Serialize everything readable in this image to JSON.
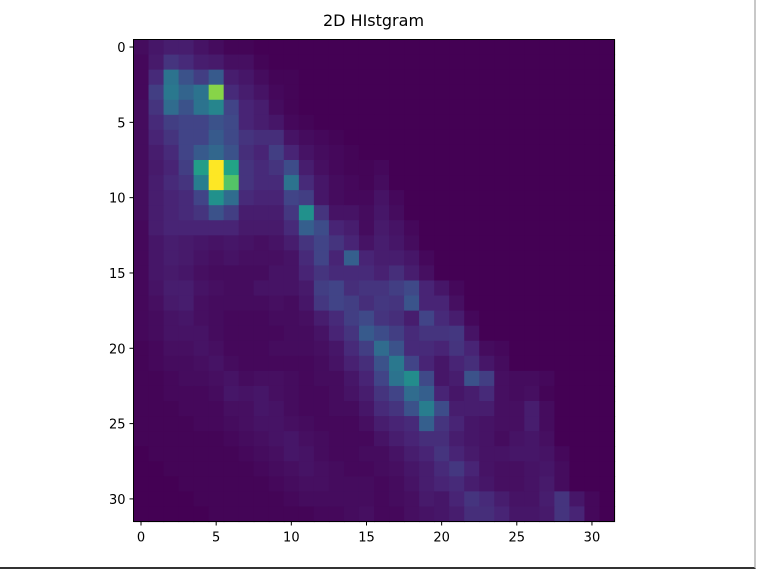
{
  "chart_data": {
    "type": "heatmap",
    "title": "2D HIstgram",
    "xlabel": "",
    "ylabel": "",
    "colormap": "viridis",
    "x_ticks": [
      0,
      5,
      10,
      15,
      20,
      25,
      30
    ],
    "y_ticks": [
      0,
      5,
      10,
      15,
      20,
      25,
      30
    ],
    "xlim": [
      -0.5,
      31.5
    ],
    "ylim": [
      31.5,
      -0.5
    ],
    "value_range": [
      0,
      10
    ],
    "grid": false,
    "values": [
      [
        0.3,
        0.6,
        0.8,
        0.8,
        0.5,
        0.3,
        0.1,
        0.1,
        0,
        0,
        0,
        0,
        0,
        0,
        0,
        0,
        0,
        0,
        0,
        0,
        0,
        0,
        0,
        0,
        0,
        0,
        0,
        0,
        0,
        0,
        0,
        0
      ],
      [
        0.2,
        0.7,
        1.5,
        1.2,
        0.8,
        0.7,
        0.4,
        0.4,
        0.1,
        0,
        0,
        0,
        0,
        0,
        0,
        0,
        0,
        0,
        0,
        0,
        0,
        0,
        0,
        0,
        0,
        0,
        0,
        0,
        0,
        0,
        0,
        0
      ],
      [
        0.2,
        1.2,
        3.8,
        2.5,
        1.8,
        2.8,
        0.8,
        0.6,
        0.3,
        0.1,
        0.1,
        0,
        0,
        0,
        0,
        0,
        0,
        0,
        0,
        0,
        0,
        0,
        0,
        0,
        0,
        0,
        0,
        0,
        0,
        0,
        0,
        0
      ],
      [
        0.2,
        1.8,
        4,
        3.2,
        3.8,
        8.2,
        1.2,
        0.8,
        0.5,
        0.2,
        0.1,
        0,
        0,
        0,
        0,
        0,
        0,
        0,
        0,
        0,
        0,
        0,
        0,
        0,
        0,
        0,
        0,
        0,
        0,
        0,
        0,
        0
      ],
      [
        0.3,
        1.5,
        3.5,
        2.5,
        3.8,
        4.5,
        2,
        1,
        0.8,
        0.3,
        0.1,
        0,
        0,
        0,
        0,
        0,
        0,
        0,
        0,
        0,
        0,
        0,
        0,
        0,
        0,
        0,
        0,
        0,
        0,
        0,
        0,
        0
      ],
      [
        0.3,
        1.2,
        1.8,
        2,
        2,
        2.5,
        2.2,
        1,
        0.8,
        0.6,
        0.2,
        0.1,
        0,
        0,
        0,
        0,
        0,
        0,
        0,
        0,
        0,
        0,
        0,
        0,
        0,
        0,
        0,
        0,
        0,
        0,
        0,
        0
      ],
      [
        0.3,
        1,
        1.5,
        2,
        2,
        2.8,
        2.2,
        1.5,
        1.3,
        1.3,
        0.5,
        0.3,
        0.2,
        0.1,
        0,
        0,
        0,
        0,
        0,
        0,
        0,
        0,
        0,
        0,
        0,
        0,
        0,
        0,
        0,
        0,
        0,
        0
      ],
      [
        0.3,
        0.8,
        1.2,
        2,
        2.8,
        3.3,
        2.5,
        1.3,
        1,
        1.8,
        1,
        0.5,
        0.3,
        0.2,
        0.1,
        0,
        0,
        0,
        0,
        0,
        0,
        0,
        0,
        0,
        0,
        0,
        0,
        0,
        0,
        0,
        0,
        0
      ],
      [
        0.3,
        0.7,
        1,
        1.8,
        5.5,
        10,
        5.8,
        1.5,
        1.2,
        1.5,
        2.3,
        0.8,
        0.4,
        0.2,
        0.1,
        0.1,
        0.2,
        0,
        0,
        0,
        0,
        0,
        0,
        0,
        0,
        0,
        0,
        0,
        0,
        0,
        0,
        0
      ],
      [
        0.3,
        0.8,
        1.2,
        1.5,
        4.2,
        10,
        7.3,
        1.5,
        1.2,
        1.2,
        3.8,
        1.2,
        0.6,
        0.3,
        0.2,
        0.1,
        0.3,
        0,
        0,
        0,
        0,
        0,
        0,
        0,
        0,
        0,
        0,
        0,
        0,
        0,
        0,
        0
      ],
      [
        0.3,
        0.8,
        1,
        1.2,
        2,
        5,
        3.5,
        1.2,
        1,
        1,
        2,
        1.8,
        0.6,
        0.3,
        0.2,
        0.2,
        0.5,
        0.2,
        0,
        0,
        0,
        0,
        0,
        0,
        0,
        0,
        0,
        0,
        0,
        0,
        0,
        0
      ],
      [
        0.3,
        0.8,
        1,
        1.2,
        1.5,
        2.5,
        1.8,
        0.8,
        0.8,
        0.8,
        1.6,
        5,
        1.5,
        0.5,
        0.5,
        0.3,
        0.6,
        0.3,
        0,
        0,
        0,
        0,
        0,
        0,
        0,
        0,
        0,
        0,
        0,
        0,
        0,
        0
      ],
      [
        0.2,
        0.8,
        1,
        1,
        1,
        1,
        1,
        0.7,
        0.7,
        0.7,
        1.2,
        3,
        2.3,
        1,
        0.8,
        0.3,
        0.7,
        0.5,
        0.2,
        0,
        0,
        0,
        0,
        0,
        0,
        0,
        0,
        0,
        0,
        0,
        0,
        0
      ],
      [
        0.2,
        0.6,
        0.8,
        0.7,
        0.6,
        0.5,
        0.6,
        0.5,
        0.4,
        0.5,
        0.8,
        1.5,
        2,
        1.5,
        1,
        0.5,
        0.8,
        0.6,
        0.3,
        0,
        0,
        0,
        0,
        0,
        0,
        0,
        0,
        0,
        0,
        0,
        0,
        0
      ],
      [
        0.2,
        0.6,
        0.8,
        0.7,
        0.5,
        0.4,
        0.5,
        0.4,
        0.4,
        0.4,
        0.5,
        1.2,
        2,
        1,
        3,
        1,
        0.8,
        0.8,
        0.6,
        0.2,
        0,
        0,
        0,
        0,
        0,
        0,
        0,
        0,
        0,
        0,
        0,
        0
      ],
      [
        0.2,
        0.6,
        0.7,
        0.6,
        0.4,
        0.3,
        0.3,
        0.3,
        0.3,
        0.5,
        0.5,
        1,
        1.5,
        1.2,
        1.2,
        1.2,
        0.9,
        1.3,
        0.8,
        0.4,
        0,
        0,
        0,
        0,
        0,
        0,
        0,
        0,
        0,
        0,
        0,
        0
      ],
      [
        0.2,
        0.5,
        0.8,
        0.8,
        0.5,
        0.4,
        0.3,
        0.3,
        0.5,
        0.5,
        0.5,
        0.7,
        1.8,
        2,
        1.3,
        1.5,
        1.5,
        1.8,
        2.2,
        1,
        0.6,
        0.2,
        0,
        0,
        0,
        0,
        0,
        0,
        0,
        0,
        0,
        0
      ],
      [
        0.2,
        0.4,
        0.7,
        0.8,
        0.4,
        0.3,
        0.3,
        0.3,
        0.3,
        0.4,
        0.3,
        0.6,
        1.6,
        2,
        1.8,
        1.3,
        1.6,
        1.5,
        2.6,
        1,
        1,
        0.4,
        0,
        0,
        0,
        0,
        0,
        0,
        0,
        0,
        0,
        0
      ],
      [
        0.2,
        0.3,
        0.5,
        0.6,
        0.4,
        0.3,
        0.2,
        0.2,
        0.2,
        0.3,
        0.3,
        0.4,
        0.8,
        1.2,
        1.8,
        2.2,
        1.5,
        1.3,
        0.8,
        2,
        1.2,
        0.8,
        0.2,
        0,
        0,
        0,
        0,
        0,
        0,
        0,
        0,
        0
      ],
      [
        0.2,
        0.3,
        0.5,
        0.5,
        0.5,
        0.3,
        0.2,
        0.2,
        0.2,
        0.2,
        0.3,
        0.3,
        0.5,
        1,
        1.5,
        2.8,
        2.3,
        1.8,
        1.2,
        1.5,
        1.5,
        1.6,
        0.5,
        0,
        0,
        0,
        0,
        0,
        0,
        0,
        0,
        0
      ],
      [
        0.1,
        0.2,
        0.4,
        0.4,
        0.5,
        0.4,
        0.2,
        0.2,
        0.2,
        0.3,
        0.3,
        0.3,
        0.4,
        0.6,
        1.2,
        1.8,
        3.5,
        2.5,
        1.2,
        1.2,
        1,
        1.5,
        1,
        0.3,
        0.2,
        0,
        0,
        0,
        0,
        0,
        0,
        0
      ],
      [
        0.1,
        0.2,
        0.3,
        0.3,
        0.4,
        0.5,
        0.3,
        0.2,
        0.2,
        0.2,
        0.2,
        0.2,
        0.3,
        0.5,
        0.9,
        1.3,
        2.5,
        4,
        2,
        1,
        0.6,
        1,
        1.3,
        0.6,
        0.3,
        0,
        0,
        0,
        0,
        0,
        0,
        0
      ],
      [
        0.1,
        0.1,
        0.2,
        0.3,
        0.3,
        0.4,
        0.5,
        0.3,
        0.4,
        0.4,
        0.3,
        0.2,
        0.3,
        0.3,
        0.6,
        1,
        2,
        3.8,
        4.8,
        2.2,
        0.6,
        0.8,
        2.5,
        1.8,
        0.4,
        0.3,
        0.3,
        0.2,
        0,
        0,
        0,
        0
      ],
      [
        0.1,
        0.1,
        0.2,
        0.2,
        0.2,
        0.3,
        0.6,
        0.5,
        0.6,
        0.4,
        0.3,
        0.2,
        0.2,
        0.3,
        0.5,
        0.8,
        1.5,
        2,
        3.5,
        3,
        1,
        0.6,
        0.8,
        1.2,
        0.4,
        0.3,
        0.4,
        0.1,
        0,
        0,
        0,
        0
      ],
      [
        0.1,
        0.1,
        0.1,
        0.2,
        0.2,
        0.2,
        0.4,
        0.4,
        0.6,
        0.5,
        0.3,
        0.2,
        0.2,
        0.3,
        0.3,
        0.6,
        1.2,
        1.5,
        2.5,
        4.2,
        2.3,
        0.8,
        0.8,
        0.8,
        0.4,
        0.4,
        0.8,
        0.3,
        0,
        0,
        0,
        0
      ],
      [
        0.1,
        0.1,
        0.1,
        0.1,
        0.2,
        0.2,
        0.3,
        0.4,
        0.5,
        0.5,
        0.4,
        0.3,
        0.2,
        0.2,
        0.2,
        0.4,
        0.8,
        1,
        1.2,
        3,
        1.5,
        1,
        0.6,
        0.5,
        0.4,
        0.4,
        0.8,
        0.3,
        0,
        0,
        0,
        0
      ],
      [
        0.1,
        0.1,
        0.1,
        0.1,
        0.1,
        0.1,
        0.2,
        0.3,
        0.4,
        0.5,
        0.6,
        0.4,
        0.3,
        0.2,
        0.2,
        0.2,
        0.5,
        0.8,
        1,
        1.3,
        1.3,
        0.8,
        0.6,
        0.5,
        0.3,
        0.5,
        0.6,
        0.4,
        0,
        0,
        0,
        0
      ],
      [
        0,
        0.1,
        0.1,
        0.1,
        0.1,
        0.1,
        0.1,
        0.2,
        0.3,
        0.4,
        0.6,
        0.5,
        0.3,
        0.2,
        0.2,
        0.3,
        0.3,
        0.5,
        0.8,
        1,
        1.5,
        1,
        0.7,
        0.5,
        0.5,
        0.6,
        0.6,
        0.5,
        0.2,
        0,
        0,
        0
      ],
      [
        0,
        0,
        0.1,
        0.1,
        0.1,
        0.1,
        0.1,
        0.1,
        0.2,
        0.3,
        0.4,
        0.5,
        0.4,
        0.3,
        0.2,
        0.2,
        0.3,
        0.4,
        0.6,
        0.8,
        1.2,
        1.6,
        1,
        0.5,
        0.4,
        0.4,
        0.5,
        0.6,
        0.3,
        0,
        0,
        0
      ],
      [
        0,
        0,
        0,
        0.1,
        0.1,
        0.1,
        0.1,
        0.1,
        0.1,
        0.2,
        0.3,
        0.4,
        0.4,
        0.3,
        0.3,
        0.3,
        0.2,
        0.3,
        0.5,
        0.8,
        1,
        1.2,
        0.8,
        0.6,
        0.4,
        0.4,
        0.5,
        0.7,
        0.3,
        0,
        0,
        0
      ],
      [
        0,
        0,
        0,
        0,
        0.1,
        0.1,
        0.1,
        0.1,
        0.1,
        0.1,
        0.2,
        0.3,
        0.3,
        0.3,
        0.3,
        0.3,
        0.2,
        0.3,
        0.4,
        0.7,
        0.6,
        1,
        1.5,
        1.2,
        0.8,
        0.5,
        0.5,
        0.8,
        1.5,
        0.6,
        0.2,
        0
      ],
      [
        0,
        0,
        0,
        0,
        0,
        0.1,
        0.1,
        0.1,
        0.1,
        0.1,
        0.1,
        0.1,
        0.2,
        0.2,
        0.3,
        0.4,
        0.2,
        0.2,
        0.4,
        0.5,
        0.6,
        0.8,
        1.3,
        1.3,
        1,
        0.6,
        0.6,
        0.7,
        1.5,
        1,
        0.2,
        0
      ]
    ]
  }
}
